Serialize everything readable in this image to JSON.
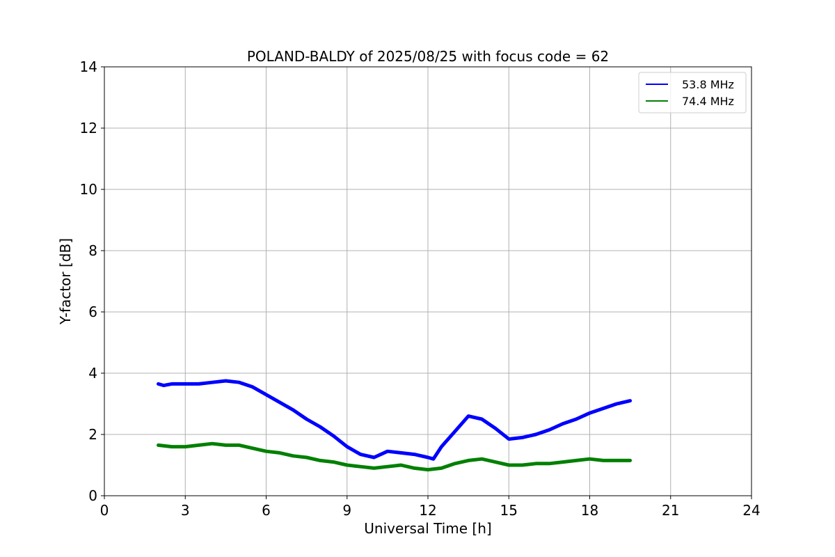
{
  "chart_data": {
    "type": "line",
    "title": "POLAND-BALDY of 2025/08/25 with focus code = 62",
    "xlabel": "Universal Time [h]",
    "ylabel": "Y-factor [dB]",
    "xlim": [
      0,
      24
    ],
    "ylim": [
      0,
      14
    ],
    "xticks": [
      0,
      3,
      6,
      9,
      12,
      15,
      18,
      21,
      24
    ],
    "yticks": [
      0,
      2,
      4,
      6,
      8,
      10,
      12,
      14
    ],
    "grid": true,
    "legend_position": "top-right",
    "series": [
      {
        "name": "53.8 MHz",
        "color": "#0000ff",
        "x": [
          2.0,
          2.2,
          2.5,
          3.0,
          3.5,
          4.0,
          4.5,
          5.0,
          5.5,
          6.0,
          6.5,
          7.0,
          7.5,
          8.0,
          8.5,
          9.0,
          9.5,
          10.0,
          10.5,
          11.0,
          11.5,
          12.0,
          12.2,
          12.5,
          13.0,
          13.5,
          14.0,
          14.5,
          15.0,
          15.5,
          16.0,
          16.5,
          17.0,
          17.5,
          18.0,
          18.5,
          19.0,
          19.5
        ],
        "y": [
          3.65,
          3.6,
          3.65,
          3.65,
          3.65,
          3.7,
          3.75,
          3.7,
          3.55,
          3.3,
          3.05,
          2.8,
          2.5,
          2.25,
          1.95,
          1.6,
          1.35,
          1.25,
          1.45,
          1.4,
          1.35,
          1.25,
          1.2,
          1.6,
          2.1,
          2.6,
          2.5,
          2.2,
          1.85,
          1.9,
          2.0,
          2.15,
          2.35,
          2.5,
          2.7,
          2.85,
          3.0,
          3.1
        ]
      },
      {
        "name": "74.4 MHz",
        "color": "#008000",
        "x": [
          2.0,
          2.5,
          3.0,
          3.5,
          4.0,
          4.5,
          5.0,
          5.5,
          6.0,
          6.5,
          7.0,
          7.5,
          8.0,
          8.5,
          9.0,
          9.5,
          10.0,
          10.5,
          11.0,
          11.5,
          12.0,
          12.5,
          13.0,
          13.5,
          14.0,
          14.5,
          15.0,
          15.5,
          16.0,
          16.5,
          17.0,
          17.5,
          18.0,
          18.5,
          19.0,
          19.5
        ],
        "y": [
          1.65,
          1.6,
          1.6,
          1.65,
          1.7,
          1.65,
          1.65,
          1.55,
          1.45,
          1.4,
          1.3,
          1.25,
          1.15,
          1.1,
          1.0,
          0.95,
          0.9,
          0.95,
          1.0,
          0.9,
          0.85,
          0.9,
          1.05,
          1.15,
          1.2,
          1.1,
          1.0,
          1.0,
          1.05,
          1.05,
          1.1,
          1.15,
          1.2,
          1.15,
          1.15,
          1.15
        ]
      }
    ]
  }
}
